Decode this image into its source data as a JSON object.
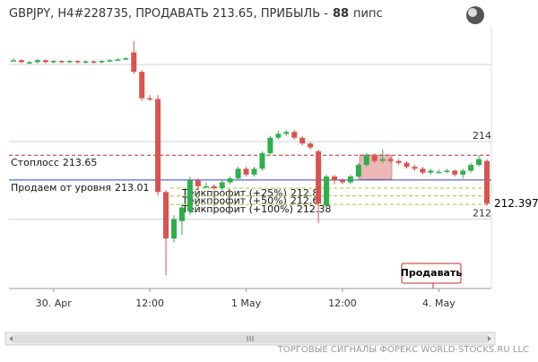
{
  "chart_data": {
    "type": "candlestick",
    "title": "GBPJPY, H4#228735, ПРОДАВАТЬ 213.65, ПРИБЫЛЬ -",
    "profit_pips": 88,
    "profit_unit": "пипс",
    "categories": [
      null,
      null,
      null,
      null,
      null,
      "30. Apr",
      null,
      null,
      null,
      null,
      null,
      null,
      null,
      null,
      null,
      null,
      null,
      "12:00",
      null,
      null,
      null,
      null,
      null,
      null,
      null,
      null,
      null,
      null,
      null,
      "1 May",
      null,
      null,
      null,
      null,
      null,
      null,
      null,
      null,
      null,
      null,
      null,
      "12:00",
      null,
      null,
      null,
      null,
      null,
      null,
      null,
      null,
      null,
      null,
      null,
      "4. May",
      null,
      null,
      null,
      null,
      null,
      null
    ],
    "open": [
      216.1,
      216.1,
      216.05,
      216.05,
      216.1,
      216.05,
      216.08,
      216.06,
      216.08,
      216.05,
      216.07,
      216.05,
      216.08,
      216.1,
      216.12,
      216.3,
      215.8,
      215.12,
      215.1,
      212.7,
      211.5,
      211.95,
      212.2,
      213.0,
      212.85,
      212.85,
      212.8,
      212.95,
      213.05,
      213.3,
      213.15,
      213.3,
      213.7,
      214.1,
      214.2,
      214.25,
      214.1,
      213.95,
      213.75,
      212.35,
      213.1,
      213.0,
      212.95,
      213.1,
      213.4,
      213.65,
      213.5,
      213.55,
      213.5,
      213.45,
      213.35,
      213.3,
      213.2,
      213.22,
      213.22,
      213.25,
      213.15,
      213.25,
      213.4,
      213.5
    ],
    "high": [
      216.15,
      216.13,
      216.08,
      216.13,
      216.12,
      216.1,
      216.1,
      216.1,
      216.1,
      216.1,
      216.1,
      216.1,
      216.13,
      216.15,
      216.18,
      216.6,
      215.85,
      215.2,
      215.2,
      212.75,
      212.1,
      212.4,
      213.1,
      213.05,
      212.95,
      212.9,
      213.0,
      213.1,
      213.35,
      213.35,
      213.35,
      213.75,
      214.15,
      214.28,
      214.3,
      214.3,
      214.15,
      214.0,
      213.8,
      213.15,
      213.15,
      213.05,
      213.15,
      213.45,
      213.7,
      213.7,
      213.8,
      213.6,
      213.55,
      213.5,
      213.4,
      213.35,
      213.3,
      213.28,
      213.3,
      213.28,
      213.3,
      213.45,
      213.65,
      213.55
    ],
    "low": [
      216.07,
      216.02,
      216.0,
      216.02,
      216.02,
      216.02,
      216.03,
      216.03,
      216.02,
      216.02,
      216.02,
      216.02,
      216.05,
      216.08,
      216.1,
      215.75,
      215.05,
      215.05,
      212.6,
      210.55,
      211.4,
      211.6,
      212.1,
      212.75,
      212.8,
      212.75,
      212.75,
      212.9,
      213.0,
      213.1,
      213.1,
      213.25,
      213.65,
      214.05,
      214.15,
      214.05,
      213.9,
      213.8,
      211.9,
      212.3,
      212.9,
      212.9,
      212.9,
      213.05,
      213.35,
      213.45,
      213.45,
      213.45,
      213.4,
      213.3,
      213.25,
      213.15,
      213.15,
      213.18,
      213.18,
      213.1,
      213.05,
      213.2,
      213.35,
      212.35
    ],
    "close": [
      216.1,
      216.05,
      216.05,
      216.1,
      216.05,
      216.08,
      216.06,
      216.08,
      216.05,
      216.07,
      216.05,
      216.08,
      216.1,
      216.12,
      216.15,
      215.8,
      215.12,
      215.1,
      212.7,
      211.5,
      212.0,
      212.3,
      213.0,
      212.85,
      212.85,
      212.8,
      212.95,
      213.05,
      213.3,
      213.15,
      213.3,
      213.7,
      214.1,
      214.2,
      214.25,
      214.1,
      213.95,
      213.85,
      212.4,
      213.1,
      213.0,
      212.95,
      213.1,
      213.4,
      213.65,
      213.5,
      213.55,
      213.5,
      213.45,
      213.35,
      213.3,
      213.2,
      213.25,
      213.22,
      213.25,
      213.15,
      213.25,
      213.4,
      213.55,
      212.4
    ],
    "up_color": "#2db04b",
    "down_color": "#d9534f",
    "ylim": [
      210.21,
      216.96
    ],
    "yticks": [
      212,
      214
    ],
    "grid": true,
    "levels": [
      {
        "label": "Стоплосс",
        "value": 213.65,
        "color": "#c62828",
        "dashed": true
      },
      {
        "label": "Продаем от уровня",
        "value": 213.01,
        "color": "#3344cc",
        "dashed": false
      },
      {
        "label": "Тейкпрофит (+25%)",
        "value": 212.8,
        "color": "#9acd32",
        "dashed": true
      },
      {
        "label": "Тейкпрофит (+50%)",
        "value": 212.6,
        "color": "#9acd32",
        "dashed": true
      },
      {
        "label": "Тейкпрофит (+100%)",
        "value": 212.38,
        "color": "#9acd32",
        "dashed": true
      }
    ],
    "current_price": 212.397,
    "button": "Продавать",
    "footer": "ТОРГОВЫЕ СИГНАЛЫ ФОРЕКС WORLD-STOCKS.RU LLC"
  }
}
